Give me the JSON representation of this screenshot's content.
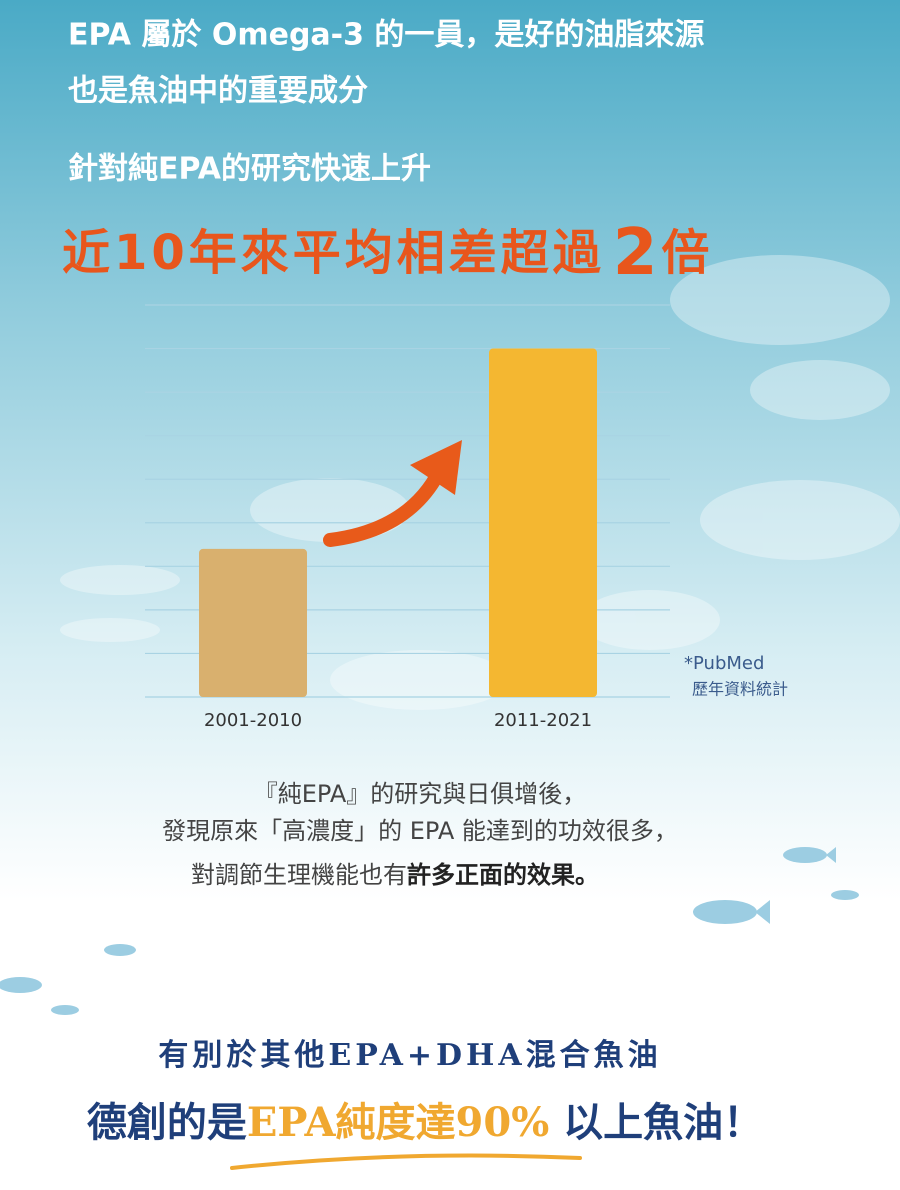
{
  "header": {
    "line1": "EPA 屬於 Omega-3 的一員，是好的油脂來源",
    "line2": "也是魚油中的重要成分",
    "line3": "針對純EPA的研究快速上升"
  },
  "chart_data": {
    "type": "bar",
    "title": "近10年來平均相差超過",
    "title_emphasis": "2",
    "title_suffix": "倍",
    "categories": [
      "2001-2010",
      "2011-2021"
    ],
    "values": [
      3.4,
      8
    ],
    "colors": [
      "#d9b06e",
      "#f4b731"
    ],
    "ylim": [
      0,
      9
    ],
    "yticks": [
      0,
      1,
      2,
      3,
      4,
      5,
      6,
      7,
      8,
      9
    ],
    "grid": true,
    "annotation": {
      "line1": "*PubMed",
      "line2": "歷年資料統計"
    }
  },
  "body": {
    "line1": "『純EPA』的研究與日俱增後，",
    "line2": "發現原來「高濃度」的 EPA 能達到的功效很多，",
    "line3": "對調節生理機能也有",
    "line3_bold": "許多正面的效果。"
  },
  "footer": {
    "line1": "有別於其他EPA+DHA混合魚油",
    "line2_start": "德創的是",
    "line2_highlight": "EPA純度達90%",
    "line2_end": " 以上魚油！"
  }
}
